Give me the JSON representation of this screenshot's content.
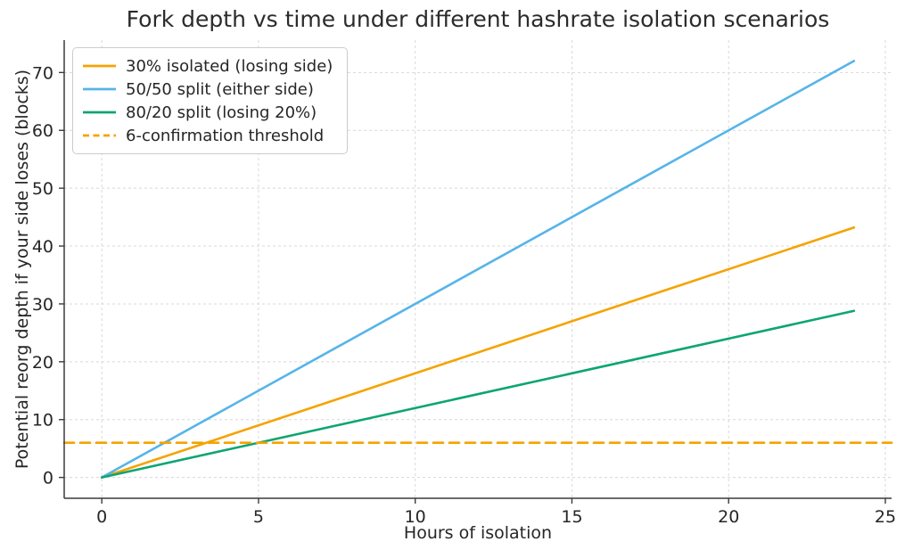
{
  "chart_data": {
    "type": "line",
    "title": "Fork depth vs time under different hashrate isolation scenarios",
    "xlabel": "Hours of isolation",
    "ylabel": "Potential reorg depth if your side loses (blocks)",
    "xlim": [
      -1.2,
      25.2
    ],
    "ylim": [
      -3.6,
      75.6
    ],
    "xticks": [
      0,
      5,
      10,
      15,
      20,
      25
    ],
    "yticks": [
      0,
      10,
      20,
      30,
      40,
      50,
      60,
      70
    ],
    "grid": true,
    "grid_color": "#d8d8d8",
    "axis_color": "#3b3b3b",
    "text_color": "#262626",
    "legend_position": "upper-left",
    "series": [
      {
        "name": "30% isolated (losing side)",
        "color": "#f5a302",
        "style": "solid",
        "x": [
          0,
          24
        ],
        "y": [
          0,
          43.2
        ]
      },
      {
        "name": "50/50 split (either side)",
        "color": "#56b4e9",
        "style": "solid",
        "x": [
          0,
          24
        ],
        "y": [
          0,
          72
        ]
      },
      {
        "name": "80/20 split (losing 20%)",
        "color": "#0ea572",
        "style": "solid",
        "x": [
          0,
          24
        ],
        "y": [
          0,
          28.8
        ]
      },
      {
        "name": "6-confirmation threshold",
        "color": "#f5a302",
        "style": "dashed",
        "x": [
          -1.2,
          25.2
        ],
        "y": [
          6,
          6
        ]
      }
    ]
  }
}
